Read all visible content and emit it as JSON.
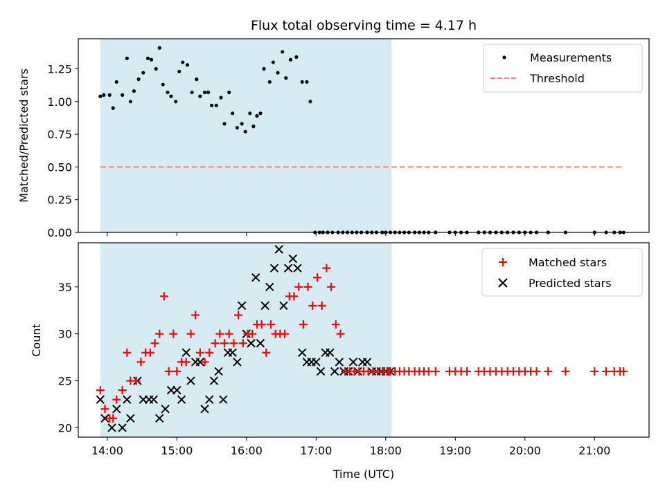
{
  "chart_data": {
    "title": "Flux total observing time = 4.17 h",
    "colors": {
      "measurement": "#000000",
      "threshold": "#ff7f7f",
      "matched": "#ff0000",
      "predicted": "#000000",
      "shading": "#add8e6"
    },
    "shaded_interval": [
      "13:54",
      "18:05"
    ],
    "x_axis": {
      "label": "Time (UTC)",
      "range": [
        "13:35",
        "21:47"
      ],
      "ticks": [
        "14:00",
        "15:00",
        "16:00",
        "17:00",
        "18:00",
        "19:00",
        "20:00",
        "21:00"
      ]
    },
    "panels": [
      {
        "type": "scatter",
        "ylabel": "Matched/Predicted stars",
        "ylim": [
          0,
          1.48
        ],
        "yticks": [
          "0.00",
          "0.25",
          "0.50",
          "0.75",
          "1.00",
          "1.25"
        ],
        "legend": {
          "placement": "top-right",
          "entries": [
            "Measurements",
            "Threshold"
          ]
        },
        "threshold": {
          "value": 0.5,
          "x_start": "13:54",
          "x_end": "21:25"
        },
        "series": [
          {
            "name": "Measurements",
            "marker": "dot",
            "x": [
              "13:54",
              "13:57",
              "14:02",
              "14:05",
              "14:08",
              "14:13",
              "14:17",
              "14:20",
              "14:23",
              "14:27",
              "14:31",
              "14:35",
              "14:38",
              "14:42",
              "14:45",
              "14:48",
              "14:52",
              "14:55",
              "14:59",
              "15:02",
              "15:05",
              "15:09",
              "15:13",
              "15:17",
              "15:20",
              "15:24",
              "15:27",
              "15:30",
              "15:34",
              "15:38",
              "15:41",
              "15:45",
              "15:48",
              "15:52",
              "15:56",
              "15:59",
              "16:03",
              "16:06",
              "16:09",
              "16:12",
              "16:15",
              "16:20",
              "16:23",
              "16:27",
              "16:31",
              "16:34",
              "16:38",
              "16:43",
              "16:48",
              "16:52",
              "16:55",
              "16:59",
              "17:03",
              "17:06",
              "17:10",
              "17:14",
              "17:19",
              "17:23",
              "17:27",
              "17:31",
              "17:35",
              "17:39",
              "17:44",
              "17:48",
              "17:52",
              "17:57",
              "18:00",
              "18:04",
              "18:08",
              "18:12",
              "18:16",
              "18:20",
              "18:25",
              "18:29",
              "18:33",
              "18:37",
              "18:43",
              "18:55",
              "19:00",
              "19:05",
              "19:10",
              "19:20",
              "19:25",
              "19:30",
              "19:35",
              "19:40",
              "19:45",
              "19:50",
              "19:55",
              "20:00",
              "20:05",
              "20:10",
              "20:20",
              "20:35",
              "21:00",
              "21:10",
              "21:17",
              "21:22",
              "21:25"
            ],
            "y": [
              1.04,
              1.05,
              1.05,
              0.95,
              1.15,
              1.05,
              1.33,
              1.0,
              1.08,
              1.17,
              1.22,
              1.33,
              1.32,
              1.25,
              1.41,
              1.13,
              1.07,
              1.04,
              1.0,
              1.23,
              1.3,
              1.28,
              1.07,
              1.17,
              1.04,
              1.07,
              1.07,
              0.97,
              0.97,
              1.03,
              0.83,
              1.07,
              0.91,
              0.8,
              0.83,
              0.77,
              0.91,
              0.81,
              0.89,
              0.91,
              1.25,
              1.15,
              1.3,
              1.22,
              1.38,
              1.18,
              1.32,
              1.34,
              1.15,
              1.15,
              1.0,
              0,
              0,
              0,
              0,
              0,
              0,
              0,
              0,
              0,
              0,
              0,
              0,
              0,
              0,
              0,
              0,
              0,
              0,
              0,
              0,
              0,
              0,
              0,
              0,
              0,
              0,
              0,
              0,
              0,
              0,
              0,
              0,
              0,
              0,
              0,
              0,
              0,
              0,
              0,
              0,
              0,
              0,
              0,
              0,
              0,
              0,
              0,
              0
            ]
          }
        ]
      },
      {
        "type": "scatter",
        "ylabel": "Count",
        "ylim": [
          19,
          39.7
        ],
        "yticks": [
          "20",
          "25",
          "30",
          "35"
        ],
        "legend": {
          "placement": "top-right",
          "entries": [
            "Matched stars",
            "Predicted stars"
          ]
        },
        "series": [
          {
            "name": "Matched stars",
            "marker": "plus",
            "x": [
              "13:54",
              "13:58",
              "14:02",
              "14:05",
              "14:08",
              "14:13",
              "14:17",
              "14:20",
              "14:25",
              "14:29",
              "14:33",
              "14:37",
              "14:41",
              "14:45",
              "14:49",
              "14:53",
              "14:57",
              "15:00",
              "15:04",
              "15:08",
              "15:12",
              "15:16",
              "15:20",
              "15:24",
              "15:28",
              "15:33",
              "15:37",
              "15:41",
              "15:45",
              "15:49",
              "15:53",
              "15:57",
              "16:01",
              "16:05",
              "16:09",
              "16:13",
              "16:17",
              "16:21",
              "16:25",
              "16:29",
              "16:33",
              "16:37",
              "16:41",
              "16:45",
              "16:49",
              "16:53",
              "16:57",
              "17:01",
              "17:05",
              "17:09",
              "17:13",
              "17:17",
              "17:21",
              "17:25",
              "17:29",
              "17:33",
              "17:37",
              "17:41",
              "17:45",
              "17:49",
              "17:53",
              "17:58",
              "18:02",
              "18:04",
              "18:08",
              "18:12",
              "18:16",
              "18:20",
              "18:25",
              "18:29",
              "18:33",
              "18:37",
              "18:43",
              "18:55",
              "19:00",
              "19:05",
              "19:10",
              "19:20",
              "19:25",
              "19:30",
              "19:35",
              "19:40",
              "19:45",
              "19:50",
              "19:55",
              "20:00",
              "20:05",
              "20:10",
              "20:20",
              "20:35",
              "21:00",
              "21:10",
              "21:17",
              "21:22",
              "21:25"
            ],
            "y": [
              24,
              22,
              21,
              21,
              23,
              24,
              28,
              25,
              25,
              27,
              28,
              28,
              29,
              30,
              34,
              26,
              30,
              26,
              27,
              27,
              30,
              32,
              28,
              27,
              28,
              29,
              30,
              29,
              30,
              29,
              32,
              29,
              30,
              30,
              31,
              31,
              28,
              31,
              30,
              30,
              30,
              34,
              34,
              35,
              31,
              35,
              33,
              36,
              33,
              37,
              35,
              31,
              30,
              26,
              26,
              26,
              26,
              26,
              26,
              26,
              26,
              26,
              26,
              26,
              26,
              26,
              26,
              26,
              26,
              26,
              26,
              26,
              26,
              26,
              26,
              26,
              26,
              26,
              26,
              26,
              26,
              26,
              26,
              26,
              26,
              26,
              26,
              26,
              26,
              26,
              26,
              26,
              26,
              26,
              26
            ]
          },
          {
            "name": "Predicted stars",
            "marker": "x",
            "x": [
              "13:54",
              "13:58",
              "14:04",
              "14:08",
              "14:13",
              "14:17",
              "14:20",
              "14:26",
              "14:31",
              "14:36",
              "14:40",
              "14:45",
              "14:50",
              "14:55",
              "15:00",
              "15:04",
              "15:08",
              "15:12",
              "15:16",
              "15:20",
              "15:24",
              "15:28",
              "15:32",
              "15:36",
              "15:40",
              "15:44",
              "15:48",
              "15:52",
              "15:56",
              "16:00",
              "16:04",
              "16:08",
              "16:12",
              "16:16",
              "16:20",
              "16:24",
              "16:28",
              "16:32",
              "16:36",
              "16:40",
              "16:44",
              "16:48",
              "16:52",
              "16:56",
              "17:00",
              "17:04",
              "17:08",
              "17:12",
              "17:16",
              "17:20",
              "17:24",
              "17:28",
              "17:32",
              "17:36",
              "17:40",
              "17:44",
              "17:48",
              "17:52",
              "17:56",
              "18:00",
              "18:04"
            ],
            "y": [
              23,
              21,
              20,
              22,
              20,
              23,
              21,
              25,
              23,
              23,
              23,
              21,
              22,
              24,
              24,
              23,
              28,
              25,
              27,
              27,
              22,
              23,
              25,
              26,
              23,
              28,
              28,
              27,
              33,
              30,
              29,
              36,
              29,
              33,
              35,
              37,
              39,
              33,
              37,
              38,
              37,
              28,
              27,
              27,
              27,
              26,
              28,
              28,
              26,
              27,
              26,
              26,
              27,
              26,
              27,
              27,
              26,
              26,
              26,
              26,
              26
            ]
          }
        ]
      }
    ]
  }
}
